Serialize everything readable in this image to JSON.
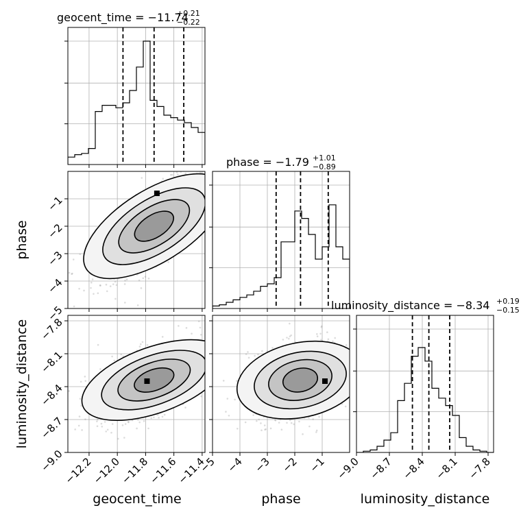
{
  "chart_data": {
    "type": "corner",
    "parameters": [
      "geocent_time",
      "phase",
      "luminosity_distance"
    ],
    "axis_labels": {
      "geocent_time": "geocent_time",
      "phase": "phase",
      "luminosity_distance": "luminosity_distance"
    },
    "titles": [
      {
        "param": "geocent_time",
        "label": "geocent_time = −11.74",
        "plus": "+0.21",
        "minus": "−0.22"
      },
      {
        "param": "phase",
        "label": "phase = −1.79",
        "plus": "+1.01",
        "minus": "−0.89"
      },
      {
        "param": "luminosity_distance",
        "label": "luminosity_distance = −8.34",
        "plus": "+0.19",
        "minus": "−0.15"
      }
    ],
    "ranges": {
      "geocent_time": [
        -12.35,
        -11.38
      ],
      "phase": [
        -5.0,
        -0.0
      ],
      "luminosity_distance": [
        -9.0,
        -7.75
      ]
    },
    "ticks": {
      "geocent_time": [
        {
          "v": -12.2,
          "label": "−12.2"
        },
        {
          "v": -12.0,
          "label": "−12.0"
        },
        {
          "v": -11.8,
          "label": "−11.8"
        },
        {
          "v": -11.6,
          "label": "−11.6"
        },
        {
          "v": -11.4,
          "label": "−11.4"
        }
      ],
      "phase": [
        {
          "v": -5,
          "label": "−5"
        },
        {
          "v": -4,
          "label": "−4"
        },
        {
          "v": -3,
          "label": "−3"
        },
        {
          "v": -2,
          "label": "−2"
        },
        {
          "v": -1,
          "label": "−1"
        }
      ],
      "luminosity_distance": [
        {
          "v": -9.0,
          "label": "−9.0"
        },
        {
          "v": -8.7,
          "label": "−8.7"
        },
        {
          "v": -8.4,
          "label": "−8.4"
        },
        {
          "v": -8.1,
          "label": "−8.1"
        },
        {
          "v": -7.8,
          "label": "−7.8"
        }
      ]
    },
    "quantiles": {
      "geocent_time": [
        -11.96,
        -11.74,
        -11.53
      ],
      "phase": [
        -2.68,
        -1.79,
        -0.78
      ],
      "luminosity_distance": [
        -8.49,
        -8.34,
        -8.15
      ]
    },
    "histograms": {
      "geocent_time": [
        0.06,
        0.08,
        0.09,
        0.13,
        0.43,
        0.48,
        0.48,
        0.46,
        0.5,
        0.6,
        0.79,
        1.0,
        0.52,
        0.47,
        0.4,
        0.38,
        0.36,
        0.34,
        0.3,
        0.26
      ],
      "phase": [
        0.02,
        0.03,
        0.05,
        0.07,
        0.09,
        0.11,
        0.14,
        0.18,
        0.2,
        0.25,
        0.54,
        0.54,
        0.79,
        0.73,
        0.6,
        0.4,
        0.5,
        0.84,
        0.5,
        0.4
      ],
      "luminosity_distance": [
        0.0,
        0.01,
        0.02,
        0.05,
        0.1,
        0.16,
        0.42,
        0.56,
        0.78,
        0.85,
        0.74,
        0.52,
        0.44,
        0.38,
        0.3,
        0.12,
        0.05,
        0.02,
        0.01,
        0.0
      ]
    },
    "correlations": {
      "phase_vs_geocent_time": 0.72,
      "luminosity_distance_vs_geocent_time": 0.55,
      "luminosity_distance_vs_phase": 0.3
    },
    "grid": true,
    "legend": "none"
  }
}
